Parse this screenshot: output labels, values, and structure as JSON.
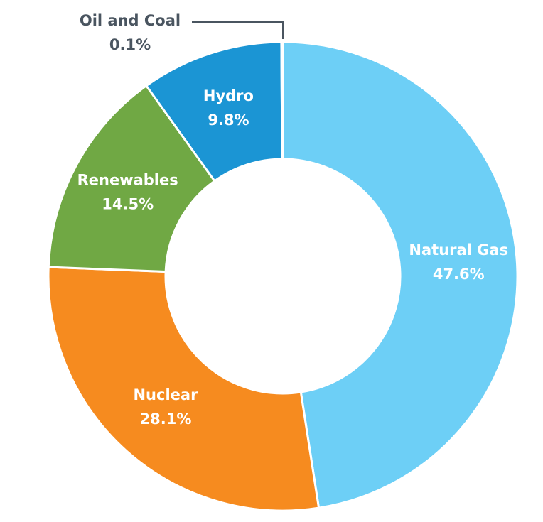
{
  "chart_data": {
    "type": "donut",
    "categories": [
      "Natural Gas",
      "Nuclear",
      "Renewables",
      "Hydro",
      "Oil and Coal"
    ],
    "values": [
      47.6,
      28.1,
      14.5,
      9.8,
      0.1
    ],
    "value_labels": [
      "47.6%",
      "28.1%",
      "14.5%",
      "9.8%",
      "0.1%"
    ],
    "colors": [
      "#6dcff6",
      "#f68b1f",
      "#70a844",
      "#1b95d4",
      "#4a5560"
    ]
  }
}
